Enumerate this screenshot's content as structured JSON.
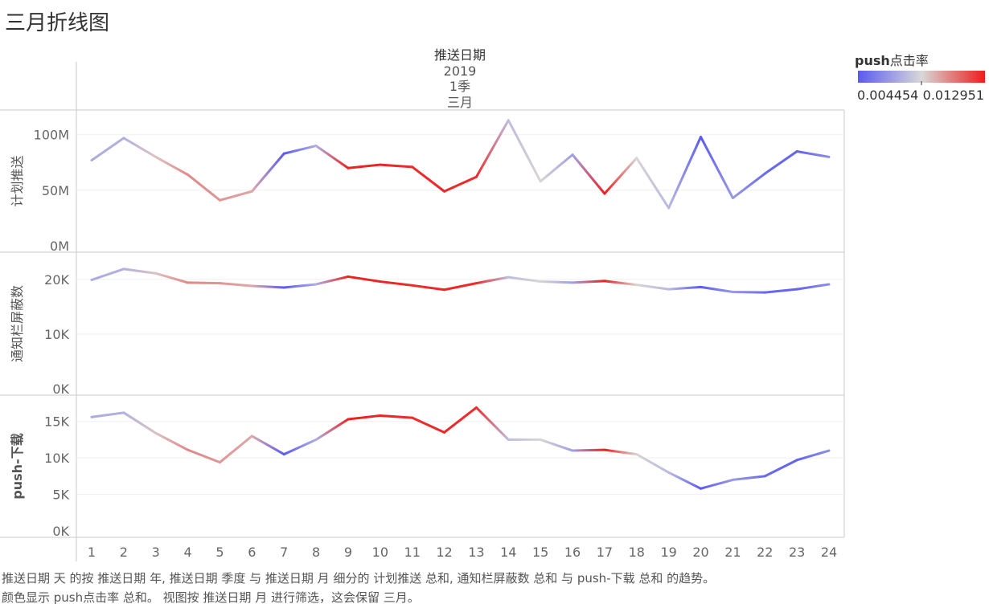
{
  "title": "三月折线图",
  "header": {
    "field": "推送日期",
    "year": "2019",
    "quarter": "1季",
    "month": "三月"
  },
  "legend": {
    "title_bold": "push",
    "title_rest": "点击率",
    "min_label": "0.004454",
    "max_label": "0.012951",
    "colors": {
      "low": "#5a5af2",
      "mid": "#d8d8d8",
      "high": "#ee1c1c"
    }
  },
  "caption": {
    "line1": "推送日期 天 的按 推送日期 年, 推送日期 季度 与 推送日期 月 细分的 计划推送 总和, 通知栏屏蔽数 总和 与 push-下载 总和 的趋势。",
    "line2": "颜色显示 push点击率 总和。 视图按 推送日期 月 进行筛选，这会保留 三月。"
  },
  "chart_data": {
    "type": "line",
    "x_label": "推送日期 天",
    "x": [
      1,
      2,
      3,
      4,
      5,
      6,
      7,
      8,
      9,
      10,
      11,
      12,
      13,
      14,
      15,
      16,
      17,
      18,
      19,
      20,
      21,
      22,
      23,
      24
    ],
    "color_measure": "push点击率",
    "color_range": [
      0.004454,
      0.012951
    ],
    "color_values": [
      0.0072,
      0.0074,
      0.0092,
      0.0105,
      0.0102,
      0.0098,
      0.0045,
      0.0073,
      0.0128,
      0.0128,
      0.0126,
      0.0127,
      0.0126,
      0.0078,
      0.0088,
      0.0068,
      0.0129,
      0.0088,
      0.0077,
      0.0045,
      0.0066,
      0.005,
      0.0048,
      0.0062
    ],
    "series": [
      {
        "name": "计划推送",
        "ylim": [
          0,
          115000000
        ],
        "yticks": [
          0,
          50000000,
          100000000
        ],
        "ytick_labels": [
          "0M",
          "50M",
          "100M"
        ],
        "values": [
          77000000,
          97000000,
          80000000,
          64000000,
          41000000,
          49000000,
          83000000,
          90000000,
          70000000,
          73000000,
          71000000,
          49000000,
          62000000,
          113000000,
          58000000,
          82000000,
          47000000,
          79000000,
          34000000,
          98000000,
          43000000,
          65000000,
          85000000,
          80000000
        ]
      },
      {
        "name": "通知栏屏蔽数",
        "ylim": [
          0,
          23500
        ],
        "yticks": [
          0,
          10000,
          20000
        ],
        "ytick_labels": [
          "0K",
          "10K",
          "20K"
        ],
        "values": [
          19900,
          21900,
          21100,
          19400,
          19300,
          18800,
          18500,
          19100,
          20500,
          19600,
          18900,
          18100,
          19300,
          20400,
          19600,
          19400,
          19700,
          19000,
          18200,
          18600,
          17700,
          17600,
          18200,
          19100
        ]
      },
      {
        "name": "push-下载",
        "ylim": [
          0,
          17500
        ],
        "yticks": [
          0,
          5000,
          10000,
          15000
        ],
        "ytick_labels": [
          "0K",
          "5K",
          "10K",
          "15K"
        ],
        "values": [
          15600,
          16200,
          13400,
          11100,
          9400,
          13000,
          10500,
          12500,
          15300,
          15800,
          15500,
          13500,
          16900,
          12500,
          12500,
          11000,
          11100,
          10500,
          8000,
          5800,
          7000,
          7500,
          9700,
          11000
        ]
      }
    ]
  }
}
